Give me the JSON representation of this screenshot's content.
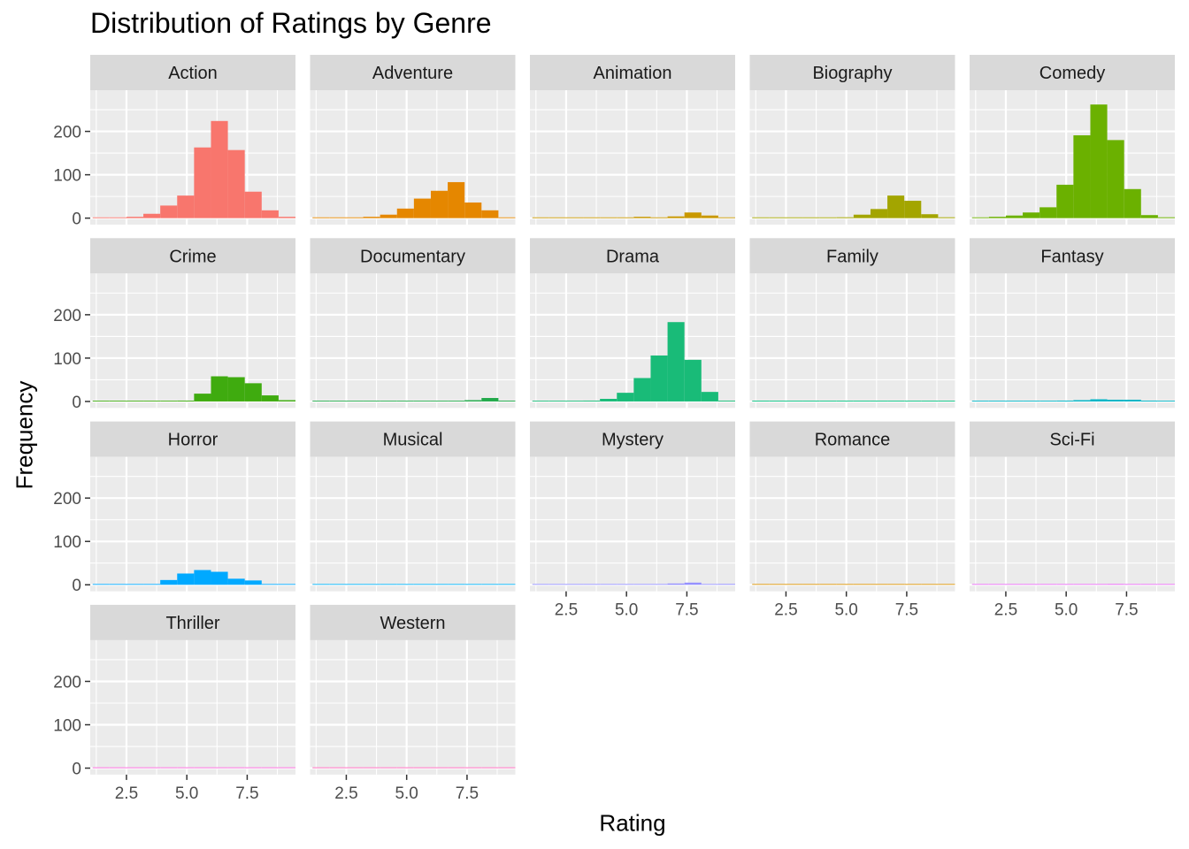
{
  "chart_data": {
    "type": "bar",
    "subtype": "faceted-histogram",
    "title": "Distribution of Ratings by Genre",
    "xlabel": "Rating",
    "ylabel": "Frequency",
    "xlim": [
      1.0,
      9.5
    ],
    "ylim": [
      -15,
      295
    ],
    "x_ticks": [
      "2.5",
      "5.0",
      "7.5"
    ],
    "y_ticks": [
      "0",
      "100",
      "200"
    ],
    "bin_edges": [
      1.1,
      1.8,
      2.5,
      3.2,
      3.9,
      4.6,
      5.3,
      6.0,
      6.7,
      7.4,
      8.1,
      8.8,
      9.5
    ],
    "grid": true,
    "legend": "none",
    "facet_ncol": 5,
    "facets": [
      {
        "name": "Action",
        "color": "#F8766D",
        "values": [
          0,
          1,
          3,
          10,
          29,
          52,
          163,
          224,
          157,
          61,
          18,
          3
        ]
      },
      {
        "name": "Adventure",
        "color": "#E58700",
        "values": [
          0,
          1,
          1,
          3,
          8,
          22,
          45,
          63,
          83,
          36,
          18,
          0
        ]
      },
      {
        "name": "Animation",
        "color": "#C99800",
        "values": [
          0,
          0,
          0,
          0,
          1,
          1,
          3,
          1,
          4,
          13,
          6,
          0
        ]
      },
      {
        "name": "Biography",
        "color": "#A3A500",
        "values": [
          0,
          0,
          0,
          1,
          1,
          2,
          8,
          21,
          52,
          40,
          9,
          2
        ]
      },
      {
        "name": "Comedy",
        "color": "#6BB100",
        "values": [
          0,
          3,
          6,
          13,
          25,
          77,
          191,
          262,
          180,
          67,
          7,
          2
        ]
      },
      {
        "name": "Crime",
        "color": "#3FAB0F",
        "values": [
          0,
          0,
          0,
          0,
          0,
          2,
          18,
          58,
          56,
          42,
          14,
          3
        ]
      },
      {
        "name": "Documentary",
        "color": "#22A94B",
        "values": [
          0,
          1,
          0,
          1,
          0,
          1,
          1,
          1,
          1,
          3,
          8,
          2
        ]
      },
      {
        "name": "Drama",
        "color": "#19BB78",
        "values": [
          0,
          1,
          0,
          2,
          6,
          20,
          54,
          106,
          183,
          96,
          22,
          2
        ]
      },
      {
        "name": "Family",
        "color": "#00BF7D",
        "values": [
          0,
          0,
          0,
          0,
          0,
          0,
          0,
          1,
          0,
          0,
          1,
          0
        ]
      },
      {
        "name": "Fantasy",
        "color": "#00B4C5",
        "values": [
          0,
          0,
          0,
          0,
          0,
          2,
          3,
          5,
          4,
          4,
          2,
          0
        ]
      },
      {
        "name": "Horror",
        "color": "#00A9FF",
        "values": [
          0,
          0,
          0,
          1,
          11,
          26,
          34,
          30,
          14,
          10,
          1,
          0
        ]
      },
      {
        "name": "Musical",
        "color": "#00B0F6",
        "values": [
          0,
          0,
          0,
          0,
          0,
          0,
          0,
          0,
          1,
          1,
          0,
          0
        ]
      },
      {
        "name": "Mystery",
        "color": "#9590FF",
        "values": [
          0,
          0,
          0,
          0,
          0,
          0,
          1,
          1,
          3,
          5,
          1,
          2
        ]
      },
      {
        "name": "Romance",
        "color": "#D89000",
        "values": [
          0,
          0,
          0,
          0,
          0,
          0,
          0,
          0,
          1,
          1,
          0,
          0
        ]
      },
      {
        "name": "Sci-Fi",
        "color": "#E76BF3",
        "values": [
          0,
          0,
          0,
          0,
          0,
          0,
          1,
          1,
          2,
          1,
          1,
          1
        ]
      },
      {
        "name": "Thriller",
        "color": "#FA62DB",
        "values": [
          0,
          0,
          0,
          0,
          0,
          0,
          1,
          0,
          0,
          0,
          0,
          0
        ]
      },
      {
        "name": "Western",
        "color": "#FF62BC",
        "values": [
          0,
          0,
          0,
          0,
          0,
          1,
          0,
          0,
          0,
          1,
          0,
          0
        ]
      }
    ]
  },
  "colors": {
    "panel_background": "#EBEBEB",
    "strip_background": "#D9D9D9",
    "grid_major": "#FFFFFF",
    "text": "#1A1A1A",
    "axis_text": "#4D4D4D"
  }
}
